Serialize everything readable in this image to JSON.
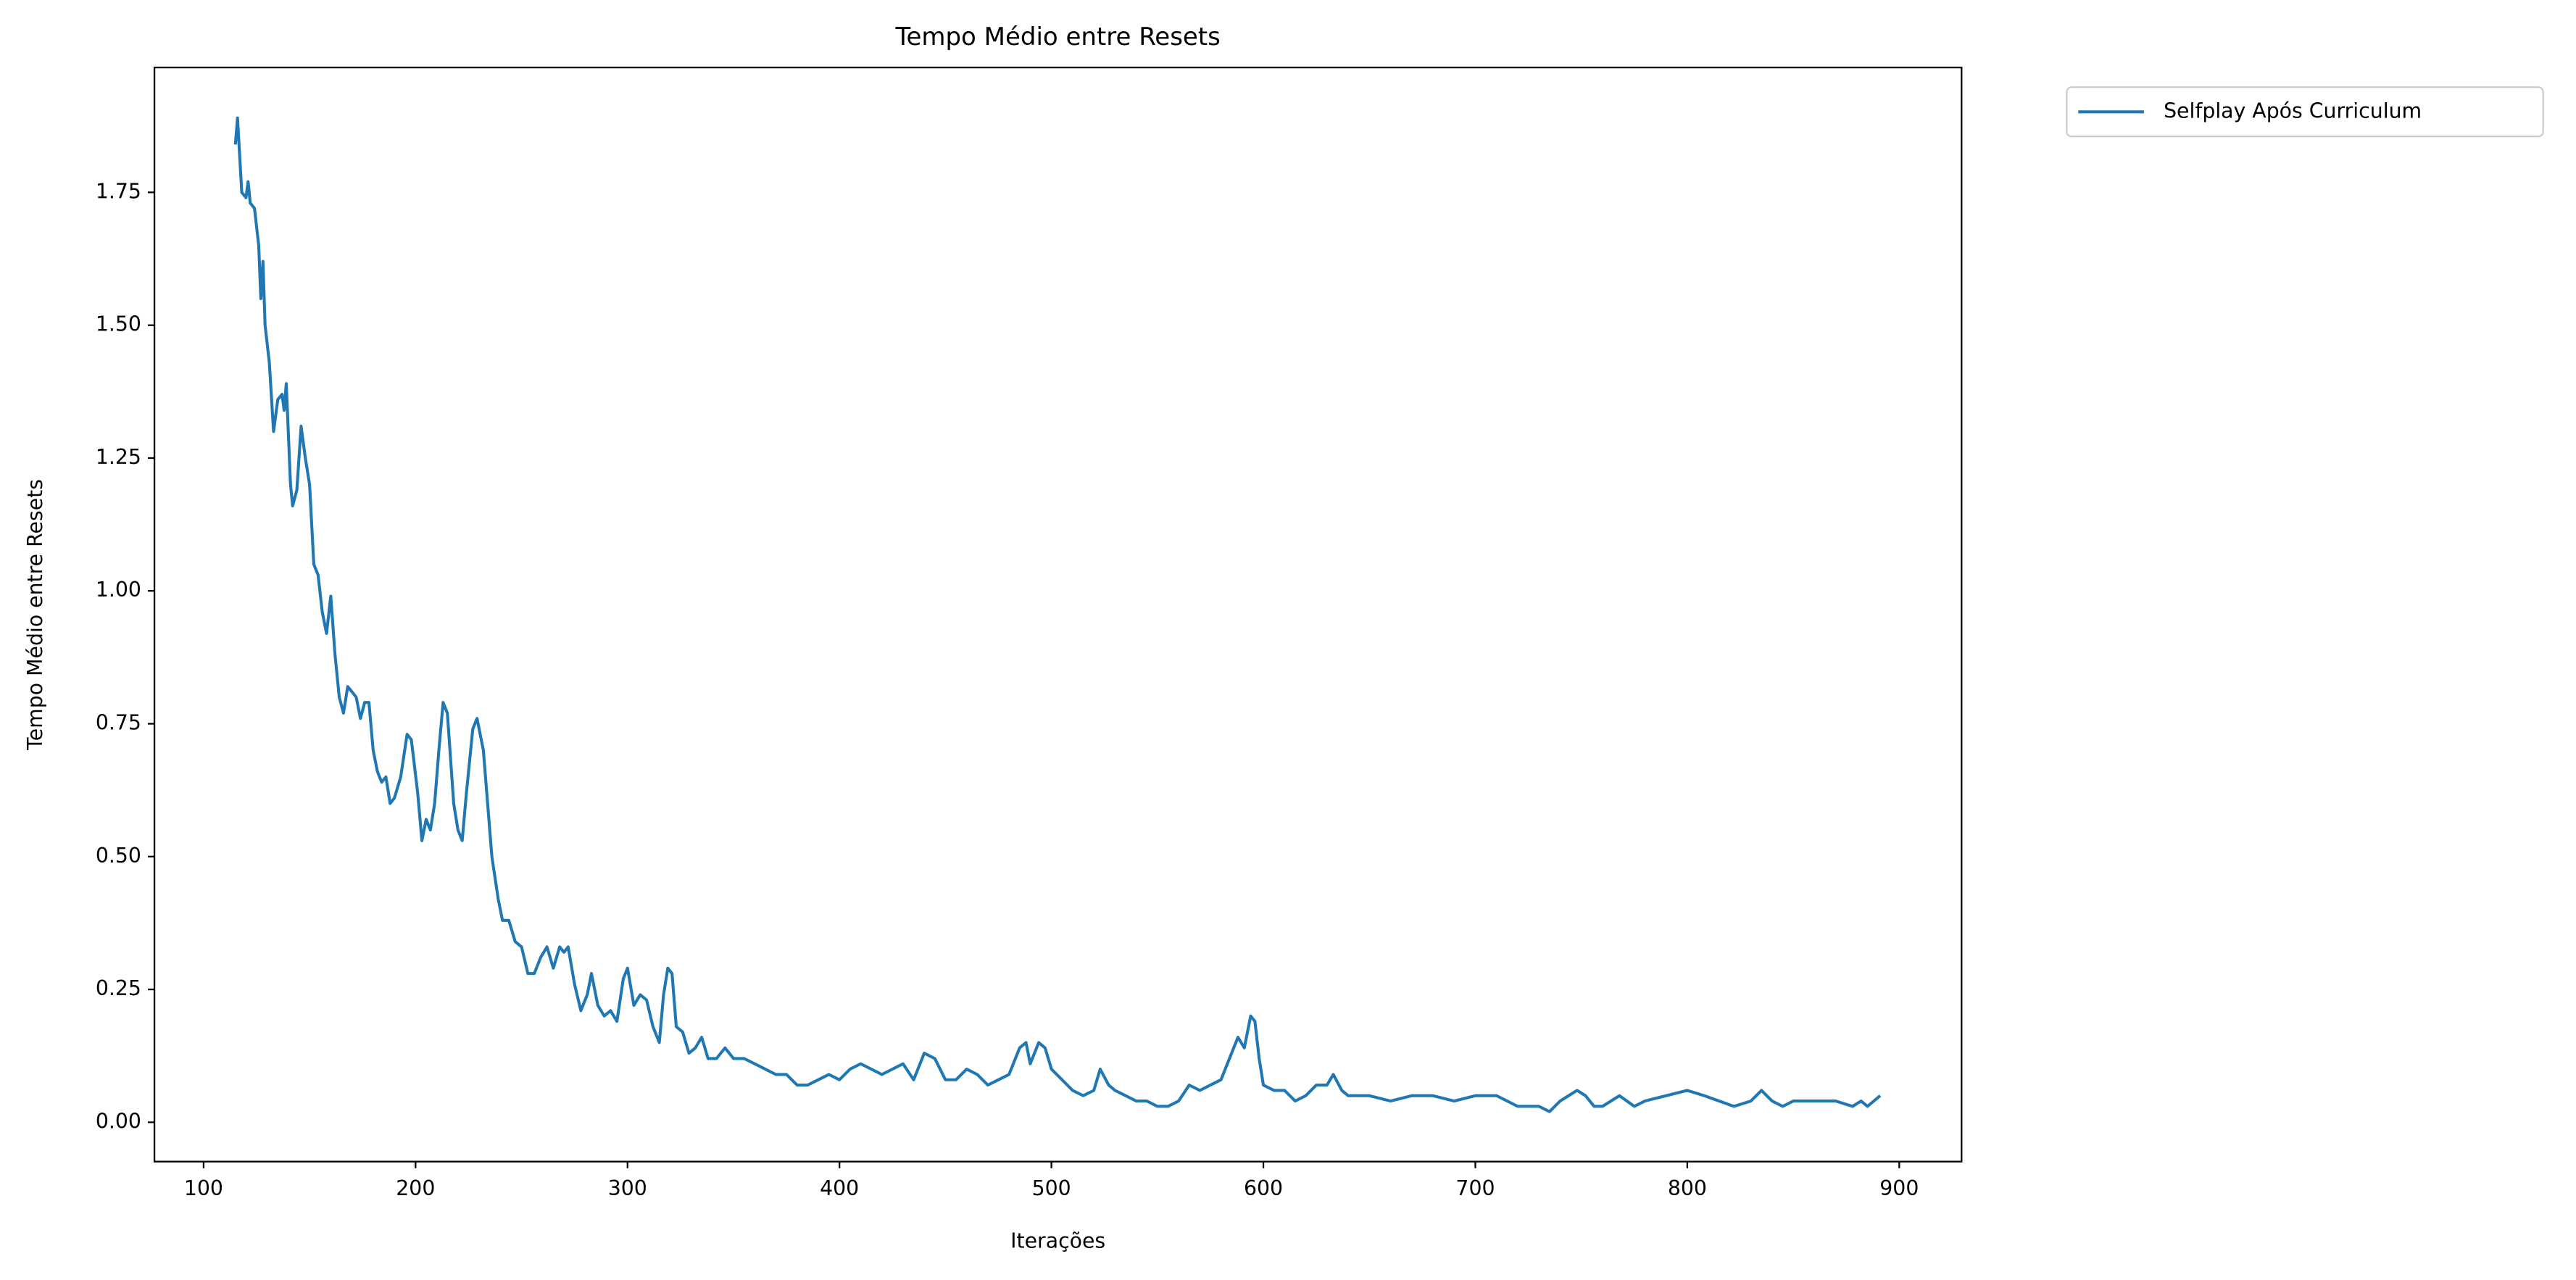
{
  "chart_data": {
    "type": "line",
    "title": "Tempo Médio entre Resets",
    "x_label": "Iterações",
    "y_label": "Tempo Médio entre Resets",
    "legend": "upper right outside",
    "xlim": [
      76.8,
      929.4
    ],
    "ylim": [
      -0.074,
      1.985
    ],
    "xticks": [
      100,
      200,
      300,
      400,
      500,
      600,
      700,
      800,
      900
    ],
    "yticks": [
      {
        "value": 0,
        "label": "0.00"
      },
      {
        "value": 0.25,
        "label": "0.25"
      },
      {
        "value": 0.5,
        "label": "0.50"
      },
      {
        "value": 0.75,
        "label": "0.75"
      },
      {
        "value": 1,
        "label": "1.00"
      },
      {
        "value": 1.25,
        "label": "1.25"
      },
      {
        "value": 1.5,
        "label": "1.50"
      },
      {
        "value": 1.75,
        "label": "1.75"
      }
    ],
    "x": [
      115,
      116,
      118,
      120,
      121,
      122,
      124,
      126,
      127,
      128,
      129,
      131,
      133,
      135,
      137,
      138,
      139,
      141,
      142,
      144,
      146,
      148,
      150,
      152,
      154,
      156,
      158,
      160,
      162,
      164,
      166,
      168,
      170,
      172,
      174,
      176,
      178,
      180,
      182,
      184,
      186,
      188,
      190,
      193,
      196,
      198,
      201,
      203,
      205,
      207,
      209,
      211,
      213,
      215,
      218,
      220,
      222,
      224,
      227,
      229,
      232,
      234,
      236,
      239,
      241,
      244,
      247,
      250,
      253,
      256,
      259,
      262,
      265,
      268,
      270,
      272,
      275,
      278,
      281,
      283,
      286,
      289,
      292,
      295,
      298,
      300,
      303,
      306,
      309,
      312,
      315,
      317,
      319,
      321,
      323,
      326,
      329,
      332,
      335,
      338,
      342,
      346,
      350,
      355,
      360,
      365,
      370,
      375,
      380,
      385,
      390,
      395,
      400,
      405,
      410,
      415,
      420,
      425,
      430,
      435,
      440,
      445,
      450,
      455,
      460,
      465,
      470,
      475,
      480,
      485,
      488,
      490,
      494,
      497,
      500,
      505,
      510,
      515,
      520,
      523,
      527,
      530,
      535,
      540,
      545,
      550,
      555,
      560,
      565,
      570,
      575,
      580,
      585,
      588,
      591,
      594,
      596,
      598,
      600,
      605,
      610,
      615,
      620,
      625,
      630,
      633,
      637,
      640,
      650,
      660,
      670,
      680,
      690,
      700,
      710,
      720,
      730,
      735,
      740,
      748,
      752,
      756,
      760,
      768,
      775,
      780,
      790,
      800,
      808,
      815,
      822,
      830,
      835,
      840,
      845,
      850,
      860,
      870,
      878,
      882,
      885,
      891
    ],
    "series": [
      {
        "name": "Selfplay Após Curriculum",
        "color": "#1f77b4",
        "values": [
          1.84,
          1.89,
          1.75,
          1.74,
          1.77,
          1.73,
          1.72,
          1.65,
          1.55,
          1.62,
          1.5,
          1.43,
          1.3,
          1.36,
          1.37,
          1.34,
          1.39,
          1.2,
          1.16,
          1.19,
          1.31,
          1.25,
          1.2,
          1.05,
          1.03,
          0.96,
          0.92,
          0.99,
          0.88,
          0.8,
          0.77,
          0.82,
          0.81,
          0.8,
          0.76,
          0.79,
          0.79,
          0.7,
          0.66,
          0.64,
          0.65,
          0.6,
          0.61,
          0.65,
          0.73,
          0.72,
          0.62,
          0.53,
          0.57,
          0.55,
          0.6,
          0.7,
          0.79,
          0.77,
          0.6,
          0.55,
          0.53,
          0.62,
          0.74,
          0.76,
          0.7,
          0.6,
          0.5,
          0.42,
          0.38,
          0.38,
          0.34,
          0.33,
          0.28,
          0.28,
          0.31,
          0.33,
          0.29,
          0.33,
          0.32,
          0.33,
          0.26,
          0.21,
          0.24,
          0.28,
          0.22,
          0.2,
          0.21,
          0.19,
          0.27,
          0.29,
          0.22,
          0.24,
          0.23,
          0.18,
          0.15,
          0.24,
          0.29,
          0.28,
          0.18,
          0.17,
          0.13,
          0.14,
          0.16,
          0.12,
          0.12,
          0.14,
          0.12,
          0.12,
          0.11,
          0.1,
          0.09,
          0.09,
          0.07,
          0.07,
          0.08,
          0.09,
          0.08,
          0.1,
          0.11,
          0.1,
          0.09,
          0.1,
          0.11,
          0.08,
          0.13,
          0.12,
          0.08,
          0.08,
          0.1,
          0.09,
          0.07,
          0.08,
          0.09,
          0.14,
          0.15,
          0.11,
          0.15,
          0.14,
          0.1,
          0.08,
          0.06,
          0.05,
          0.06,
          0.1,
          0.07,
          0.06,
          0.05,
          0.04,
          0.04,
          0.03,
          0.03,
          0.04,
          0.07,
          0.06,
          0.07,
          0.08,
          0.13,
          0.16,
          0.14,
          0.2,
          0.19,
          0.12,
          0.07,
          0.06,
          0.06,
          0.04,
          0.05,
          0.07,
          0.07,
          0.09,
          0.06,
          0.05,
          0.05,
          0.04,
          0.05,
          0.05,
          0.04,
          0.05,
          0.05,
          0.03,
          0.03,
          0.02,
          0.04,
          0.06,
          0.05,
          0.03,
          0.03,
          0.05,
          0.03,
          0.04,
          0.05,
          0.06,
          0.05,
          0.04,
          0.03,
          0.04,
          0.06,
          0.04,
          0.03,
          0.04,
          0.04,
          0.04,
          0.03,
          0.04,
          0.03,
          0.05
        ]
      }
    ]
  }
}
